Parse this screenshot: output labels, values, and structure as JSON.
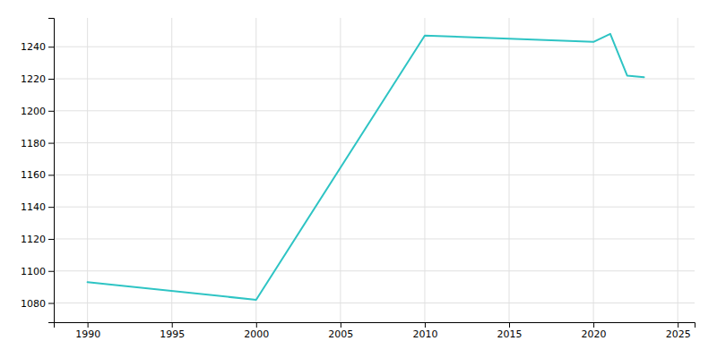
{
  "chart_data": {
    "type": "line",
    "x": [
      1990,
      2000,
      2010,
      2020,
      2021,
      2022,
      2023
    ],
    "values": [
      1093,
      1082,
      1247,
      1243,
      1248,
      1222,
      1221
    ],
    "color": "#2EC4C4",
    "xlim": [
      1988,
      2026
    ],
    "ylim": [
      1068,
      1258
    ],
    "xticks": [
      1990,
      1995,
      2000,
      2005,
      2010,
      2015,
      2020,
      2025
    ],
    "yticks": [
      1080,
      1100,
      1120,
      1140,
      1160,
      1180,
      1200,
      1220,
      1240
    ],
    "grid": true
  }
}
